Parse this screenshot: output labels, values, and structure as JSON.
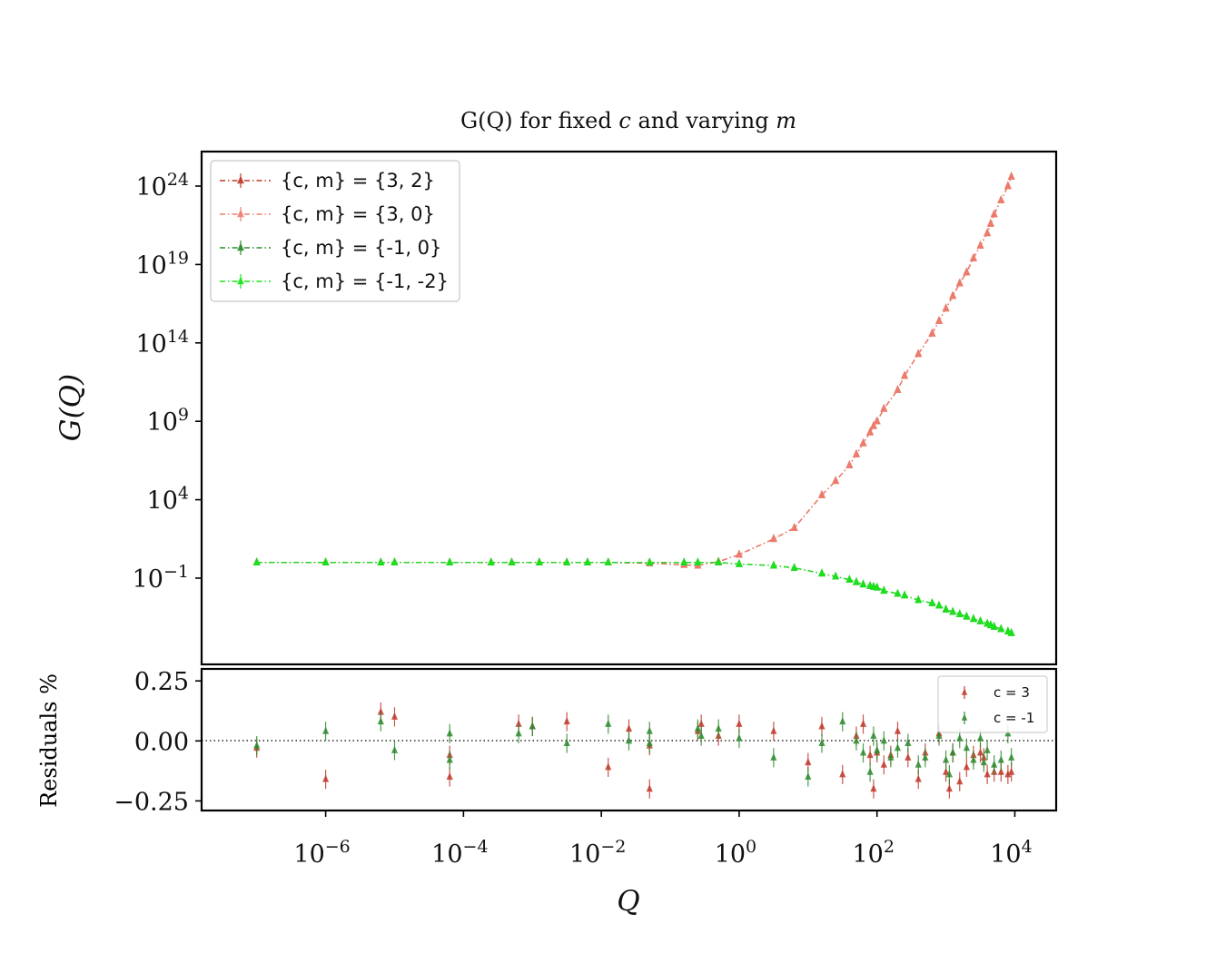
{
  "chart_data": [
    {
      "type": "line",
      "panel": "main",
      "title": "G(Q) for fixed c and varying m",
      "xlabel": "Q",
      "ylabel": "G(Q)",
      "xscale": "log",
      "yscale": "log",
      "xlim_log10": [
        -7.8,
        4.6
      ],
      "ylim_log10": [
        -6.5,
        26.2
      ],
      "y_ticks": [
        {
          "base": "10",
          "exp": "24",
          "value_log10": 24
        },
        {
          "base": "10",
          "exp": "19",
          "value_log10": 19
        },
        {
          "base": "10",
          "exp": "14",
          "value_log10": 14
        },
        {
          "base": "10",
          "exp": "9",
          "value_log10": 9
        },
        {
          "base": "10",
          "exp": "4",
          "value_log10": 4
        },
        {
          "base": "10",
          "exp": "−1",
          "value_log10": -1
        }
      ],
      "legend_location": "upper-left",
      "legend": [
        {
          "label": "{c, m} = {3, 2}",
          "color": "#c0392b"
        },
        {
          "label": "{c, m} = {3, 0}",
          "color": "#f08070"
        },
        {
          "label": "{c, m} = {-1, 0}",
          "color": "#2e8b2e"
        },
        {
          "label": "{c, m} = {-1, -2}",
          "color": "#19e619"
        }
      ],
      "x_log10": [
        -7.0,
        -6.0,
        -5.2,
        -5.0,
        -4.2,
        -3.6,
        -3.3,
        -2.9,
        -2.5,
        -2.2,
        -1.9,
        -1.3,
        -0.8,
        -0.6,
        -0.3,
        0.0,
        0.5,
        0.8,
        1.2,
        1.4,
        1.6,
        1.7,
        1.8,
        1.9,
        1.95,
        2.0,
        2.1,
        2.3,
        2.4,
        2.6,
        2.8,
        2.9,
        3.0,
        3.1,
        3.2,
        3.3,
        3.4,
        3.5,
        3.6,
        3.65,
        3.7,
        3.8,
        3.9,
        3.95
      ],
      "series": [
        {
          "name": "{c, m} = {3, 2}",
          "color": "#c0392b",
          "y_log10": [
            0.0,
            0.0,
            0.0,
            0.0,
            0.0,
            0.0,
            0.0,
            0.0,
            0.0,
            0.0,
            0.0,
            -0.05,
            -0.15,
            -0.2,
            0.05,
            0.5,
            1.5,
            2.2,
            4.3,
            5.2,
            6.2,
            6.9,
            7.6,
            8.3,
            8.7,
            9.0,
            9.8,
            11.0,
            11.9,
            13.3,
            14.6,
            15.4,
            16.2,
            17.0,
            17.8,
            18.5,
            19.4,
            20.2,
            21.0,
            21.6,
            22.2,
            23.1,
            24.0,
            24.6
          ]
        },
        {
          "name": "{c, m} = {3, 0}",
          "color": "#f08070",
          "y_log10": [
            0.0,
            0.0,
            0.0,
            0.0,
            0.0,
            0.0,
            0.0,
            0.0,
            0.0,
            0.0,
            0.0,
            -0.05,
            -0.15,
            -0.2,
            0.05,
            0.5,
            1.5,
            2.2,
            4.3,
            5.2,
            6.2,
            6.9,
            7.6,
            8.3,
            8.7,
            9.0,
            9.8,
            11.0,
            11.9,
            13.3,
            14.6,
            15.4,
            16.2,
            17.0,
            17.8,
            18.5,
            19.4,
            20.2,
            21.0,
            21.6,
            22.2,
            23.1,
            24.0,
            24.6
          ]
        },
        {
          "name": "{c, m} = {-1, 0}",
          "color": "#2e8b2e",
          "y_log10": [
            0.0,
            0.0,
            0.0,
            0.0,
            0.0,
            0.0,
            0.0,
            0.0,
            0.0,
            0.0,
            0.0,
            0.0,
            0.0,
            0.0,
            0.0,
            -0.1,
            -0.2,
            -0.35,
            -0.7,
            -0.9,
            -1.1,
            -1.25,
            -1.4,
            -1.5,
            -1.55,
            -1.6,
            -1.8,
            -2.0,
            -2.1,
            -2.4,
            -2.6,
            -2.75,
            -3.0,
            -3.15,
            -3.3,
            -3.45,
            -3.6,
            -3.75,
            -3.9,
            -4.0,
            -4.1,
            -4.25,
            -4.4,
            -4.5
          ]
        },
        {
          "name": "{c, m} = {-1, -2}",
          "color": "#19e619",
          "y_log10": [
            0.0,
            0.0,
            0.0,
            0.0,
            0.0,
            0.0,
            0.0,
            0.0,
            0.0,
            0.0,
            0.0,
            0.0,
            0.0,
            0.0,
            0.0,
            -0.1,
            -0.2,
            -0.35,
            -0.7,
            -0.9,
            -1.1,
            -1.25,
            -1.4,
            -1.5,
            -1.55,
            -1.6,
            -1.8,
            -2.0,
            -2.1,
            -2.4,
            -2.6,
            -2.75,
            -3.0,
            -3.15,
            -3.3,
            -3.45,
            -3.6,
            -3.75,
            -3.9,
            -4.0,
            -4.1,
            -4.25,
            -4.4,
            -4.5
          ]
        }
      ]
    },
    {
      "type": "scatter",
      "panel": "residuals",
      "xlabel": "Q",
      "ylabel": "Residuals %",
      "xscale": "log",
      "ylim": [
        -0.29,
        0.3
      ],
      "y_ticks": [
        {
          "label": "0.25",
          "value": 0.25
        },
        {
          "label": "0.00",
          "value": 0.0
        },
        {
          "label": "−0.25",
          "value": -0.25
        }
      ],
      "x_ticks": [
        {
          "base": "10",
          "exp": "−6",
          "value_log10": -6
        },
        {
          "base": "10",
          "exp": "−4",
          "value_log10": -4
        },
        {
          "base": "10",
          "exp": "−2",
          "value_log10": -2
        },
        {
          "base": "10",
          "exp": "0",
          "value_log10": 0
        },
        {
          "base": "10",
          "exp": "2",
          "value_log10": 2
        },
        {
          "base": "10",
          "exp": "4",
          "value_log10": 4
        }
      ],
      "legend_location": "upper-right",
      "legend": [
        {
          "label": "c = 3",
          "color": "#c0392b"
        },
        {
          "label": "c = -1",
          "color": "#2e8b2e"
        }
      ],
      "error": 0.04,
      "series": [
        {
          "name": "c = 3",
          "color": "#c0392b",
          "x_log10": [
            -7.0,
            -6.0,
            -5.2,
            -5.0,
            -4.2,
            -4.2,
            -3.2,
            -3.0,
            -2.5,
            -1.9,
            -1.6,
            -1.3,
            -1.3,
            -0.6,
            -0.55,
            -0.3,
            0.0,
            0.5,
            1.0,
            1.2,
            1.5,
            1.7,
            1.8,
            1.9,
            1.95,
            2.0,
            2.1,
            2.2,
            2.3,
            2.45,
            2.6,
            2.7,
            2.9,
            3.0,
            3.05,
            3.1,
            3.2,
            3.3,
            3.4,
            3.5,
            3.55,
            3.6,
            3.7,
            3.8,
            3.9,
            3.95
          ],
          "values": [
            -0.03,
            -0.16,
            0.12,
            0.1,
            -0.15,
            -0.06,
            0.07,
            0.06,
            0.08,
            -0.11,
            0.05,
            -0.02,
            -0.2,
            0.04,
            0.07,
            0.02,
            0.07,
            0.04,
            -0.09,
            0.06,
            -0.14,
            0.02,
            0.07,
            -0.06,
            -0.2,
            -0.05,
            -0.1,
            -0.06,
            0.04,
            -0.07,
            -0.16,
            -0.05,
            0.03,
            -0.13,
            -0.2,
            -0.05,
            -0.17,
            -0.11,
            -0.06,
            -0.05,
            -0.07,
            -0.14,
            -0.13,
            -0.13,
            -0.14,
            -0.13
          ]
        },
        {
          "name": "c = -1",
          "color": "#2e8b2e",
          "x_log10": [
            -7.0,
            -6.0,
            -5.2,
            -5.0,
            -4.2,
            -4.2,
            -3.2,
            -3.0,
            -2.5,
            -1.9,
            -1.6,
            -1.3,
            -1.3,
            -0.6,
            -0.55,
            -0.3,
            0.0,
            0.5,
            1.0,
            1.2,
            1.5,
            1.7,
            1.8,
            1.9,
            1.95,
            2.0,
            2.1,
            2.2,
            2.3,
            2.45,
            2.6,
            2.7,
            2.9,
            3.0,
            3.05,
            3.1,
            3.2,
            3.3,
            3.4,
            3.5,
            3.55,
            3.6,
            3.7,
            3.8,
            3.9,
            3.95
          ],
          "values": [
            -0.02,
            0.04,
            0.08,
            -0.04,
            0.03,
            -0.08,
            0.03,
            0.06,
            -0.01,
            0.07,
            0.0,
            0.04,
            -0.01,
            0.05,
            0.02,
            0.05,
            0.01,
            -0.07,
            -0.15,
            -0.01,
            0.08,
            0.0,
            -0.05,
            -0.13,
            0.02,
            -0.04,
            0.0,
            -0.07,
            -0.03,
            -0.01,
            -0.1,
            -0.07,
            0.02,
            -0.08,
            -0.14,
            -0.05,
            0.01,
            -0.03,
            -0.08,
            0.01,
            -0.09,
            -0.04,
            -0.1,
            -0.08,
            0.03,
            -0.07
          ]
        }
      ]
    }
  ]
}
